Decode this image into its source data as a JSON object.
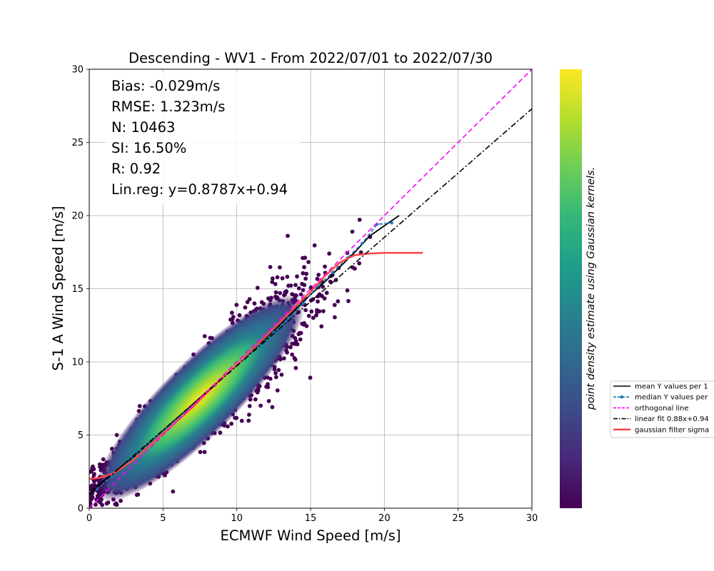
{
  "chart_data": {
    "type": "scatter",
    "title": "Descending - WV1 - From 2022/07/01 to 2022/07/30",
    "xlabel": "ECMWF Wind Speed [m/s]",
    "ylabel": "S-1 A Wind Speed [m/s]",
    "xlim": [
      0,
      30
    ],
    "ylim": [
      0,
      30
    ],
    "xticks": [
      0,
      5,
      10,
      15,
      20,
      25,
      30
    ],
    "yticks": [
      0,
      5,
      10,
      15,
      20,
      25,
      30
    ],
    "grid": true,
    "colorbar": {
      "label": "point density estimate using Gaussian kernels.",
      "colormap": [
        "#440154",
        "#482878",
        "#3e4a89",
        "#31688e",
        "#26828e",
        "#1f9e89",
        "#35b779",
        "#6ece58",
        "#b5de2b",
        "#fde725"
      ]
    },
    "stats": [
      "Bias: -0.029m/s",
      "RMSE: 1.323m/s",
      "N: 10463",
      "SI: 16.50%",
      "R: 0.92",
      "Lin.reg: y=0.8787x+0.94"
    ],
    "legend": {
      "position": "right, outside",
      "entries": [
        {
          "label": "mean Y values per 1",
          "color": "#000000",
          "style": "solid"
        },
        {
          "label": "median Y values per",
          "color": "#1f77b4",
          "style": "dashed-marker"
        },
        {
          "label": "orthogonal line",
          "color": "#ff00ff",
          "style": "dashed"
        },
        {
          "label": "linear fit 0.88x+0.94",
          "color": "#000000",
          "style": "dashdot"
        },
        {
          "label": "gaussian filter sigma",
          "color": "#ff4444",
          "style": "solid"
        }
      ]
    },
    "series": [
      {
        "name": "orthogonal line",
        "color": "#ff00ff",
        "x": [
          0,
          30
        ],
        "y": [
          0,
          30
        ]
      },
      {
        "name": "linear fit 0.88x+0.94",
        "color": "#000000",
        "x": [
          0,
          30
        ],
        "y": [
          0.94,
          27.3
        ]
      },
      {
        "name": "mean Y values per 1",
        "color": "#000000",
        "x": [
          0,
          1,
          2,
          3,
          4,
          5,
          6,
          7,
          8,
          9,
          10,
          11,
          12,
          13,
          14,
          15,
          16,
          17,
          18,
          19,
          20,
          21
        ],
        "y": [
          1.0,
          1.9,
          2.7,
          3.5,
          4.4,
          5.3,
          6.2,
          7.1,
          8.0,
          8.9,
          9.8,
          10.7,
          11.6,
          12.6,
          13.6,
          14.6,
          15.5,
          16.5,
          17.5,
          18.6,
          19.3,
          20.0
        ]
      },
      {
        "name": "median Y values per",
        "color": "#1f77b4",
        "x": [
          0.5,
          1.5,
          2.5,
          3.5,
          4.5,
          5.5,
          6.5,
          7.5,
          8.5,
          9.5,
          10.5,
          11.5,
          12.5,
          13.5,
          14.5,
          15.5,
          16.5,
          17.5,
          18.5,
          19.5,
          20.5
        ],
        "y": [
          1.3,
          2.2,
          3.0,
          3.9,
          4.8,
          5.7,
          6.6,
          7.5,
          8.4,
          9.3,
          10.2,
          11.1,
          12.0,
          13.0,
          14.0,
          15.2,
          16.1,
          17.1,
          18.1,
          19.4,
          19.5
        ]
      },
      {
        "name": "gaussian filter sigma",
        "color": "#ff4444",
        "x": [
          0,
          0.5,
          1,
          1.5,
          2,
          3,
          4,
          5,
          6,
          7,
          8,
          9,
          10,
          11,
          12,
          13,
          14,
          15,
          16,
          17,
          18,
          19,
          20,
          21,
          22,
          22.6
        ],
        "y": [
          2.0,
          2.05,
          2.15,
          2.35,
          2.6,
          3.3,
          4.2,
          5.1,
          6.0,
          6.9,
          7.9,
          8.9,
          9.8,
          10.8,
          11.8,
          12.8,
          13.8,
          14.8,
          15.9,
          16.8,
          17.3,
          17.4,
          17.45,
          17.45,
          17.45,
          17.45
        ]
      }
    ]
  }
}
